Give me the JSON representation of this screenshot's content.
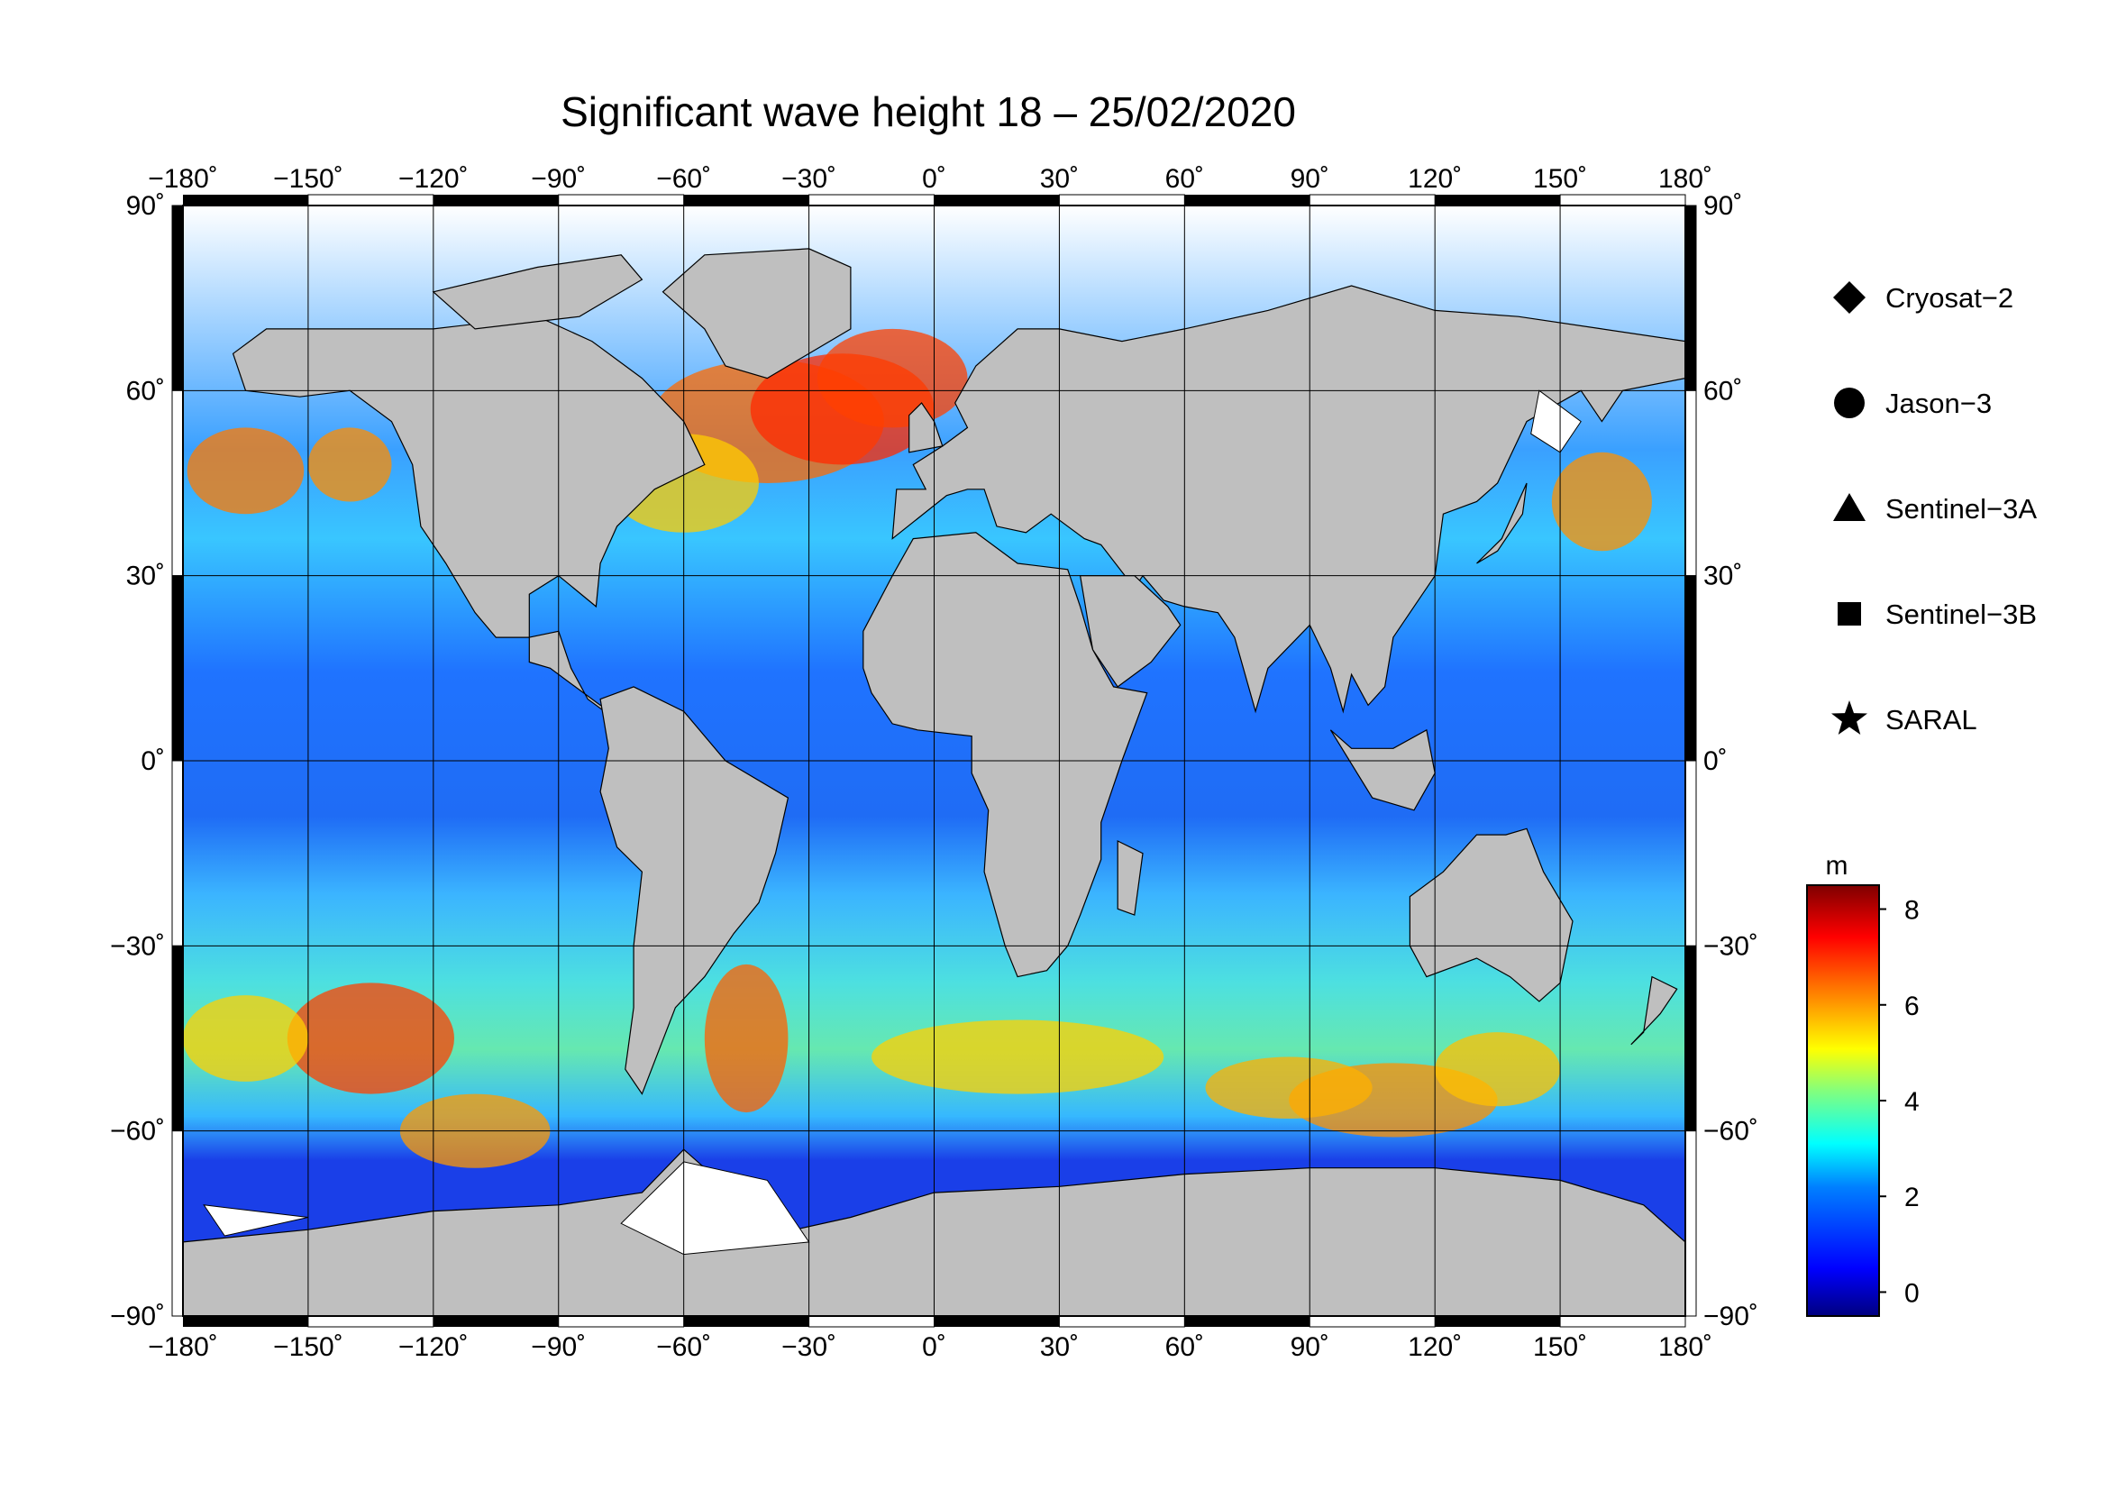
{
  "title": "Significant wave height 18 – 25/02/2020",
  "axes": {
    "x_ticks": [
      -180,
      -150,
      -120,
      -90,
      -60,
      -30,
      0,
      30,
      60,
      90,
      120,
      150,
      180
    ],
    "x_tick_labels": [
      "−180˚",
      "−150˚",
      "−120˚",
      "−90˚",
      "−60˚",
      "−30˚",
      "0˚",
      "30˚",
      "60˚",
      "90˚",
      "120˚",
      "150˚",
      "180˚"
    ],
    "y_ticks": [
      90,
      60,
      30,
      0,
      -30,
      -60,
      -90
    ],
    "y_tick_labels": [
      "90˚",
      "60˚",
      "30˚",
      "0˚",
      "−30˚",
      "−60˚",
      "−90˚"
    ],
    "xlim": [
      -180,
      180
    ],
    "ylim": [
      -90,
      90
    ],
    "grid": true
  },
  "legend": {
    "placement": "right",
    "items": [
      {
        "label": "Cryosat−2",
        "symbol": "diamond"
      },
      {
        "label": "Jason−3",
        "symbol": "circle"
      },
      {
        "label": "Sentinel−3A",
        "symbol": "triangle"
      },
      {
        "label": "Sentinel−3B",
        "symbol": "square"
      },
      {
        "label": "SARAL",
        "symbol": "star"
      }
    ]
  },
  "colorbar": {
    "unit": "m",
    "range": [
      -0.5,
      8.5
    ],
    "ticks": [
      0,
      2,
      4,
      6,
      8
    ],
    "tick_labels": [
      "0",
      "2",
      "4",
      "6",
      "8"
    ],
    "colors": [
      "#00007f",
      "#0000ff",
      "#0080ff",
      "#00ffff",
      "#80ff80",
      "#ffff00",
      "#ff8000",
      "#ff0000",
      "#7f0000"
    ]
  },
  "colors": {
    "land": "#bfbfbf",
    "ice": "#ffffff"
  }
}
